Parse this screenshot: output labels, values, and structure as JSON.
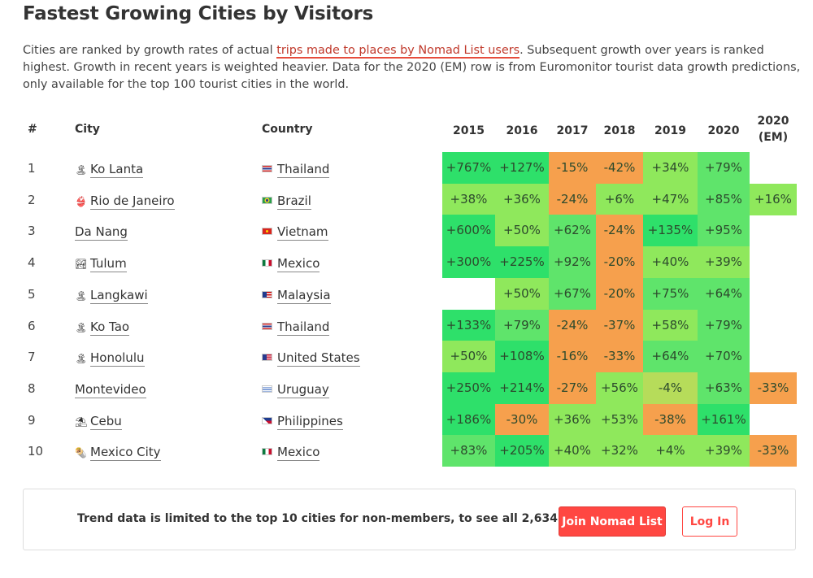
{
  "page": {
    "title": "Fastest Growing Cities by Visitors",
    "description_before": "Cities are ranked by growth rates of actual ",
    "description_link": "trips made to places by Nomad List users",
    "description_after": ". Subsequent growth over years is ranked highest. Growth in recent years is weighted heavier. Data for the 2020 (EM) row is from Euromonitor tourist data growth predictions, only available for the top 100 tourist cities in the world.",
    "link_color": "#c0392b"
  },
  "table": {
    "headers": {
      "rank": "#",
      "city": "City",
      "country": "Country",
      "years": [
        "2015",
        "2016",
        "2017",
        "2018",
        "2019",
        "2020",
        "2020\n(EM)"
      ]
    },
    "rows": [
      {
        "rank": "1",
        "city": "Ko Lanta",
        "city_icon": "palm-island-icon",
        "city_glyph": "🏝",
        "country": "Thailand",
        "flag": "thailand-flag",
        "values": [
          "+767%",
          "+127%",
          "-15%",
          "-42%",
          "+34%",
          "+79%",
          ""
        ]
      },
      {
        "rank": "2",
        "city": "Rio de Janeiro",
        "city_icon": "bikini-icon",
        "city_glyph": "👙",
        "country": "Brazil",
        "flag": "brazil-flag",
        "values": [
          "+38%",
          "+36%",
          "-24%",
          "+6%",
          "+47%",
          "+85%",
          "+16%"
        ]
      },
      {
        "rank": "3",
        "city": "Da Nang",
        "city_icon": "",
        "city_glyph": "",
        "country": "Vietnam",
        "flag": "vietnam-flag",
        "values": [
          "+600%",
          "+50%",
          "+62%",
          "-24%",
          "+135%",
          "+95%",
          ""
        ]
      },
      {
        "rank": "4",
        "city": "Tulum",
        "city_icon": "beach-landscape-icon",
        "city_glyph": "🏞",
        "country": "Mexico",
        "flag": "mexico-flag",
        "values": [
          "+300%",
          "+225%",
          "+92%",
          "-20%",
          "+40%",
          "+39%",
          ""
        ]
      },
      {
        "rank": "5",
        "city": "Langkawi",
        "city_icon": "palm-island-icon",
        "city_glyph": "🏝",
        "country": "Malaysia",
        "flag": "malaysia-flag",
        "values": [
          "",
          "+50%",
          "+67%",
          "-20%",
          "+75%",
          "+64%",
          ""
        ]
      },
      {
        "rank": "6",
        "city": "Ko Tao",
        "city_icon": "palm-island-icon",
        "city_glyph": "🏝",
        "country": "Thailand",
        "flag": "thailand-flag",
        "values": [
          "+133%",
          "+79%",
          "-24%",
          "-37%",
          "+58%",
          "+79%",
          ""
        ]
      },
      {
        "rank": "7",
        "city": "Honolulu",
        "city_icon": "palm-island-icon",
        "city_glyph": "🏝",
        "country": "United States",
        "flag": "usa-flag",
        "values": [
          "+50%",
          "+108%",
          "-16%",
          "-33%",
          "+64%",
          "+70%",
          ""
        ]
      },
      {
        "rank": "8",
        "city": "Montevideo",
        "city_icon": "",
        "city_glyph": "",
        "country": "Uruguay",
        "flag": "uruguay-flag",
        "values": [
          "+250%",
          "+214%",
          "-27%",
          "+56%",
          "-4%",
          "+63%",
          "-33%"
        ]
      },
      {
        "rank": "9",
        "city": "Cebu",
        "city_icon": "beach-umbrella-icon",
        "city_glyph": "⛱",
        "country": "Philippines",
        "flag": "philippines-flag",
        "values": [
          "+186%",
          "-30%",
          "+36%",
          "+53%",
          "-38%",
          "+161%",
          ""
        ]
      },
      {
        "rank": "10",
        "city": "Mexico City",
        "city_icon": "burrito-icon",
        "city_glyph": "🌯",
        "country": "Mexico",
        "flag": "mexico-flag",
        "values": [
          "+83%",
          "+205%",
          "+40%",
          "+32%",
          "+4%",
          "+39%",
          "-33%"
        ]
      }
    ]
  },
  "heat_colors": {
    "very_high": "#2ee06a",
    "high": "#5fe46b",
    "medium": "#8fe85c",
    "low": "#b6dc5a",
    "negative": "#f6a04d"
  },
  "banner": {
    "text": "Trend data is limited to the top 10 cities for non-members, to see all 2,634 cities",
    "join_label": "Join Nomad List",
    "login_label": "Log In",
    "join_color": "#ff4742"
  }
}
